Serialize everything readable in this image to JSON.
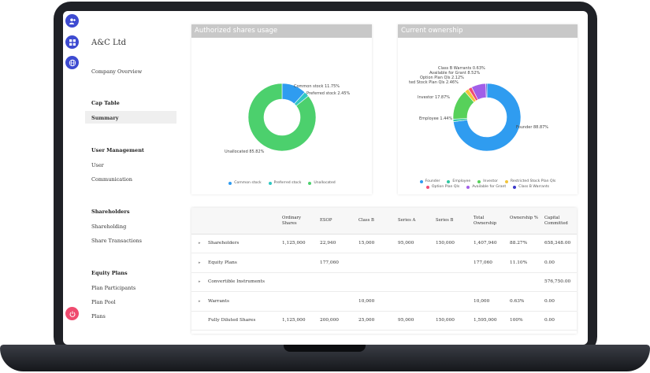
{
  "company": {
    "name": "A&C Ltd",
    "overview": "Company Overview"
  },
  "sidebar": {
    "sections": [
      {
        "heading": "Cap Table",
        "items": [
          "Summary"
        ]
      },
      {
        "heading": "User Management",
        "items": [
          "User",
          "Communication"
        ]
      },
      {
        "heading": "Shareholders",
        "items": [
          "Shareholding",
          "Share Transactions"
        ]
      },
      {
        "heading": "Equity Plans",
        "items": [
          "Plan Participants",
          "Plan Pool",
          "Plans"
        ]
      }
    ],
    "active": "Summary"
  },
  "rail_icons": [
    "user-add-icon",
    "grid-icon",
    "globe-icon",
    "power-icon"
  ],
  "charts": {
    "authorized": {
      "title": "Authorized shares usage",
      "labels": {
        "common": "Common stock 11.75%",
        "preferred": "Preferred stock 2.45%",
        "unallocated": "Unallocated 85.82%"
      },
      "legend": [
        "Common stock",
        "Preferred stock",
        "Unallocated"
      ]
    },
    "ownership": {
      "title": "Current ownership",
      "labels": {
        "founder": "Founder 88.87%",
        "employee": "Employee 1.44%",
        "investor": "Investor 17.87%",
        "restricted": "ted Stock Plan Qls 2.46%",
        "option": "Option Plan Qls 2.12%",
        "available": "Available for Grant 8.52%",
        "classb": "Class B Warrants 0.63%"
      },
      "legend": [
        "Founder",
        "Employee",
        "Investor",
        "Restricted Stock Plan Qls",
        "Option Plan Qls",
        "Available for Grant",
        "Class B Warrants"
      ]
    }
  },
  "chart_data": [
    {
      "type": "pie",
      "title": "Authorized shares usage",
      "categories": [
        "Common stock",
        "Preferred stock",
        "Unallocated"
      ],
      "values": [
        11.75,
        2.45,
        85.82
      ],
      "colors": [
        "#2f9cf0",
        "#30c7c2",
        "#4cd06d"
      ],
      "legend": "bottom"
    },
    {
      "type": "pie",
      "title": "Current ownership",
      "categories": [
        "Founder",
        "Employee",
        "Investor",
        "Restricted Stock Plan Qls",
        "Option Plan Qls",
        "Available for Grant",
        "Class B Warrants"
      ],
      "values": [
        88.87,
        1.44,
        17.87,
        2.46,
        2.12,
        8.52,
        0.63
      ],
      "colors": [
        "#2f9cf0",
        "#30c7a2",
        "#57d15a",
        "#f2c53a",
        "#f14b74",
        "#a15ee8",
        "#3a37c9"
      ],
      "legend": "bottom"
    }
  ],
  "table": {
    "headers": [
      "",
      "Ordinary Shares",
      "ESOP",
      "Class B",
      "Series A",
      "Series B",
      "Total Ownership",
      "Ownership %",
      "Capital Committed"
    ],
    "rows": [
      {
        "label": "Shareholders",
        "expandable": true,
        "cells": [
          "1,125,000",
          "22,940",
          "15,000",
          "95,000",
          "150,000",
          "1,407,940",
          "88.27%",
          "658,348.00"
        ]
      },
      {
        "label": "Equity Plans",
        "expandable": true,
        "cells": [
          "",
          "177,060",
          "",
          "",
          "",
          "177,060",
          "11.10%",
          "0.00"
        ]
      },
      {
        "label": "Convertible Instruments",
        "expandable": true,
        "cells": [
          "",
          "",
          "",
          "",
          "",
          "",
          "",
          "576,750.00"
        ]
      },
      {
        "label": "Warrants",
        "expandable": true,
        "cells": [
          "",
          "",
          "10,000",
          "",
          "",
          "10,000",
          "0.63%",
          "0.00"
        ]
      },
      {
        "label": "Fully Diluted Shares",
        "expandable": false,
        "cells": [
          "1,125,000",
          "200,000",
          "25,000",
          "95,000",
          "150,000",
          "1,595,000",
          "100%",
          "0.00"
        ]
      }
    ]
  }
}
